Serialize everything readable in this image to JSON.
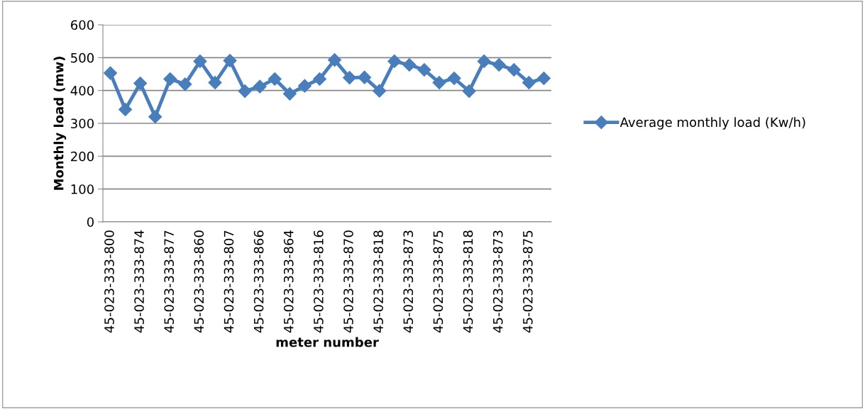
{
  "chart_data": {
    "type": "line",
    "xlabel": "meter number",
    "ylabel": "Monthly load (mw)",
    "categories": [
      "45-023-333-800",
      null,
      "45-023-333-874",
      null,
      "45-023-333-877",
      null,
      "45-023-333-860",
      null,
      "45-023-333-807",
      null,
      "45-023-333-866",
      null,
      "45-023-333-864",
      null,
      "45-023-333-816",
      null,
      "45-023-333-870",
      null,
      "45-023-333-818",
      null,
      "45-023-333-873",
      null,
      "45-023-333-875",
      null,
      "45-023-333-818",
      null,
      "45-023-333-873",
      null,
      "45-023-333-875",
      null
    ],
    "series": [
      {
        "name": "Average monthly load (Kw/h)",
        "color": "#4a7ebb",
        "values": [
          453,
          342,
          422,
          320,
          435,
          419,
          489,
          424,
          491,
          398,
          412,
          435,
          390,
          414,
          435,
          493,
          439,
          440,
          399,
          489,
          478,
          463,
          424,
          437,
          398,
          489,
          478,
          463,
          424,
          437
        ]
      }
    ],
    "ylim": [
      0,
      600
    ],
    "yticks": [
      0,
      100,
      200,
      300,
      400,
      500,
      600
    ],
    "grid": "y",
    "legend": "right",
    "marker": "diamond",
    "line_style": "solid"
  }
}
